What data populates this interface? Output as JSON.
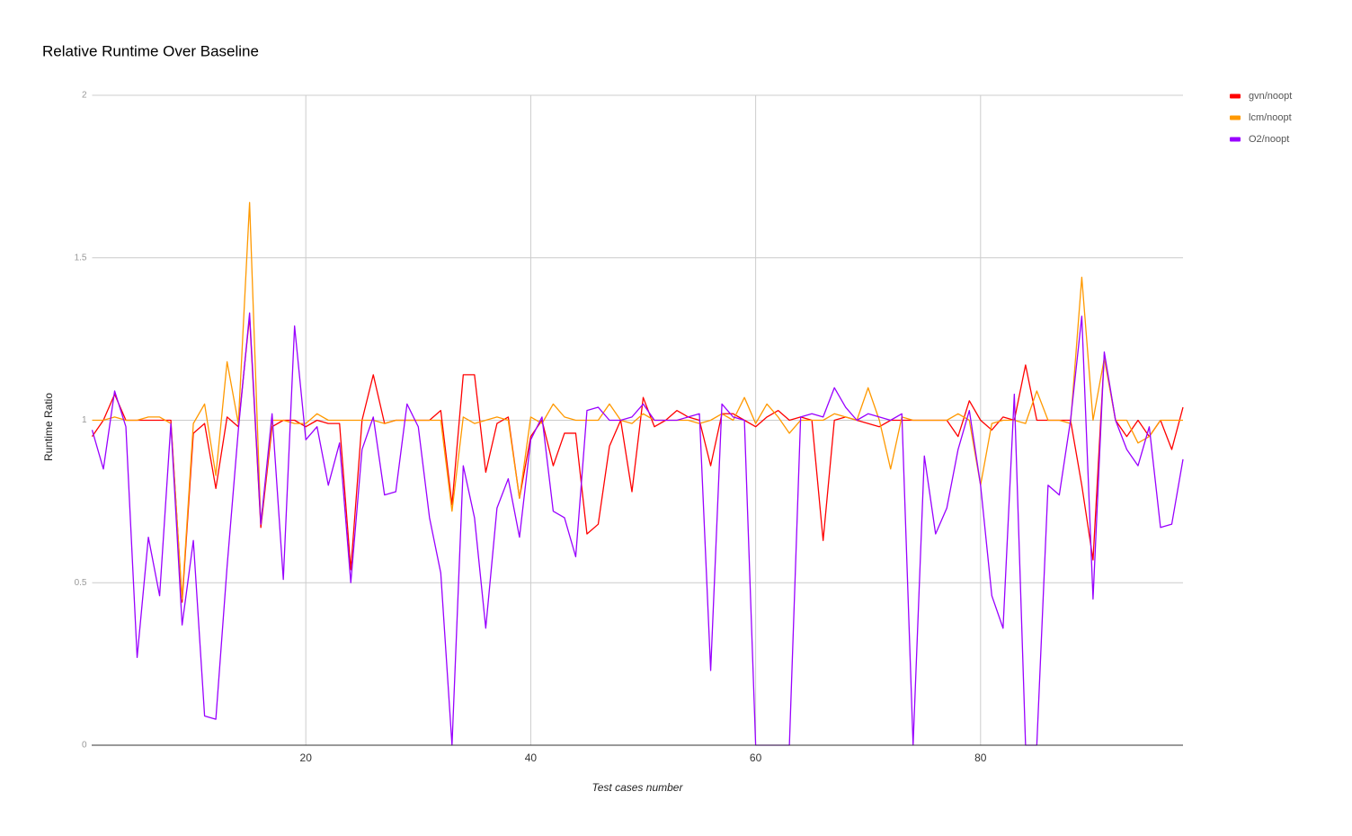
{
  "chart_data": {
    "type": "line",
    "title": "Relative Runtime Over Baseline",
    "x_label": "Test cases number",
    "y_label": "Runtime Ratio",
    "x": [
      1,
      2,
      3,
      4,
      5,
      6,
      7,
      8,
      9,
      10,
      11,
      12,
      13,
      14,
      15,
      16,
      17,
      18,
      19,
      20,
      21,
      22,
      23,
      24,
      25,
      26,
      27,
      28,
      29,
      30,
      31,
      32,
      33,
      34,
      35,
      36,
      37,
      38,
      39,
      40,
      41,
      42,
      43,
      44,
      45,
      46,
      47,
      48,
      49,
      50,
      51,
      52,
      53,
      54,
      55,
      56,
      57,
      58,
      59,
      60,
      61,
      62,
      63,
      64,
      65,
      66,
      67,
      68,
      69,
      70,
      71,
      72,
      73,
      74,
      75,
      76,
      77,
      78,
      79,
      80,
      81,
      82,
      83,
      84,
      85,
      86,
      87,
      88,
      89,
      90,
      91,
      92,
      93,
      94,
      95,
      96,
      97,
      98
    ],
    "series": [
      {
        "name": "gvn/noopt",
        "color": "#ff0000",
        "values": [
          0.95,
          1.0,
          1.08,
          1.0,
          1.0,
          1.0,
          1.0,
          1.0,
          0.44,
          0.96,
          0.99,
          0.79,
          1.01,
          0.98,
          1.32,
          0.67,
          0.98,
          1.0,
          1.0,
          0.98,
          1.0,
          0.99,
          0.99,
          0.54,
          1.0,
          1.14,
          0.99,
          1.0,
          1.0,
          1.0,
          1.0,
          1.03,
          0.74,
          1.14,
          1.14,
          0.84,
          0.99,
          1.01,
          0.76,
          0.95,
          1.0,
          0.86,
          0.96,
          0.96,
          0.65,
          0.68,
          0.92,
          1.0,
          0.78,
          1.07,
          0.98,
          1.0,
          1.03,
          1.01,
          1.0,
          0.86,
          1.02,
          1.02,
          1.0,
          0.98,
          1.01,
          1.03,
          1.0,
          1.01,
          1.0,
          0.63,
          1.0,
          1.01,
          1.0,
          0.99,
          0.98,
          1.0,
          1.0,
          1.0,
          1.0,
          1.0,
          1.0,
          0.95,
          1.06,
          1.0,
          0.97,
          1.01,
          1.0,
          1.17,
          1.0,
          1.0,
          1.0,
          1.0,
          0.8,
          0.57,
          1.2,
          1.0,
          0.95,
          1.0,
          0.95,
          1.0,
          0.91,
          1.04
        ]
      },
      {
        "name": "lcm/noopt",
        "color": "#ff9900",
        "values": [
          1.0,
          1.0,
          1.01,
          1.0,
          1.0,
          1.01,
          1.01,
          0.99,
          0.45,
          0.99,
          1.05,
          0.83,
          1.18,
          0.99,
          1.67,
          0.68,
          1.0,
          1.0,
          0.99,
          0.99,
          1.02,
          1.0,
          1.0,
          1.0,
          1.0,
          1.0,
          0.99,
          1.0,
          1.0,
          1.0,
          1.0,
          1.0,
          0.72,
          1.01,
          0.99,
          1.0,
          1.01,
          1.0,
          0.76,
          1.01,
          0.99,
          1.05,
          1.01,
          1.0,
          1.0,
          1.0,
          1.05,
          1.0,
          0.99,
          1.02,
          1.0,
          1.0,
          1.0,
          1.0,
          0.99,
          1.0,
          1.02,
          1.0,
          1.07,
          0.99,
          1.05,
          1.01,
          0.96,
          1.0,
          1.0,
          1.0,
          1.02,
          1.01,
          1.0,
          1.1,
          1.0,
          0.85,
          1.01,
          1.0,
          1.0,
          1.0,
          1.0,
          1.02,
          1.0,
          0.8,
          0.99,
          1.0,
          1.0,
          0.99,
          1.09,
          1.0,
          1.0,
          0.99,
          1.44,
          1.0,
          1.19,
          1.0,
          1.0,
          0.93,
          0.95,
          1.0,
          1.0,
          1.0
        ]
      },
      {
        "name": "O2/noopt",
        "color": "#9900ff",
        "values": [
          0.97,
          0.85,
          1.09,
          0.98,
          0.27,
          0.64,
          0.46,
          0.99,
          0.37,
          0.63,
          0.09,
          0.08,
          0.55,
          0.97,
          1.33,
          0.68,
          1.02,
          0.51,
          1.29,
          0.94,
          0.98,
          0.8,
          0.93,
          0.5,
          0.91,
          1.01,
          0.77,
          0.78,
          1.05,
          0.98,
          0.7,
          0.53,
          0,
          0.86,
          0.7,
          0.36,
          0.73,
          0.82,
          0.64,
          0.94,
          1.01,
          0.72,
          0.7,
          0.58,
          1.03,
          1.04,
          1.0,
          1.0,
          1.01,
          1.05,
          1.0,
          1.0,
          1.0,
          1.01,
          1.02,
          0.23,
          1.05,
          1.01,
          1.0,
          0,
          0,
          0,
          0,
          1.01,
          1.02,
          1.01,
          1.1,
          1.04,
          1.0,
          1.02,
          1.01,
          1.0,
          1.02,
          0,
          0.89,
          0.65,
          0.73,
          0.91,
          1.03,
          0.8,
          0.46,
          0.36,
          1.08,
          0,
          0,
          0.8,
          0.77,
          1.0,
          1.32,
          0.45,
          1.21,
          1.0,
          0.91,
          0.86,
          0.98,
          0.67,
          0.68,
          0.88
        ]
      }
    ],
    "xlim": [
      1,
      98
    ],
    "ylim": [
      0,
      2
    ],
    "xticks": [
      20,
      40,
      60,
      80
    ],
    "yticks": [
      0,
      0.5,
      1,
      1.5,
      2
    ],
    "grid": true,
    "legend": "right"
  }
}
